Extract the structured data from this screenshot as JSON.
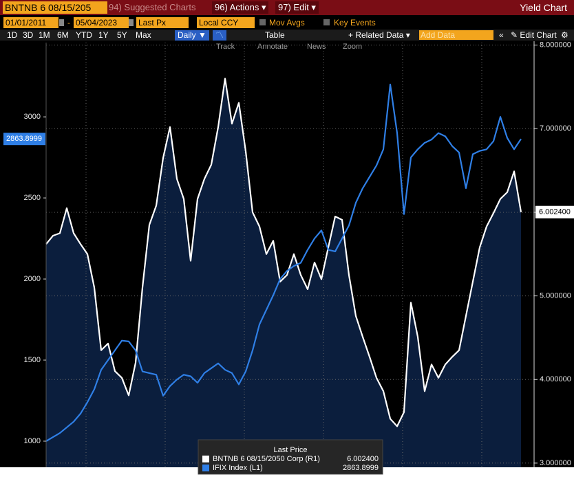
{
  "toolbar": {
    "security": "BNTNB 6 08/15/205",
    "suggested": "94) Suggested Charts",
    "actions": "96) Actions",
    "edit": "97) Edit",
    "chart_kind": "Yield Chart"
  },
  "controls": {
    "start_date": "01/01/2011",
    "dash": "-",
    "end_date": "05/04/2023",
    "field": "Last Px",
    "currency": "Local CCY",
    "mov_avgs": "Mov Avgs",
    "key_events": "Key Events"
  },
  "periods": [
    "1D",
    "3D",
    "1M",
    "6M",
    "YTD",
    "1Y",
    "5Y",
    "Max"
  ],
  "frequency": "Daily",
  "table": "Table",
  "related": "Related Data",
  "add_data": "Add Data",
  "edit_chart": "Edit Chart",
  "tools": [
    "Track",
    "Annotate",
    "News",
    "Zoom"
  ],
  "chart_data": {
    "type": "line",
    "legend_title": "Last Price",
    "categories": [
      null,
      null,
      null,
      null,
      null,
      null,
      null,
      null,
      null,
      null,
      null,
      null,
      null,
      null,
      null,
      null,
      null,
      null,
      null,
      null,
      null,
      null,
      null,
      null,
      null,
      null,
      null,
      null,
      null,
      null,
      null,
      null,
      null,
      null,
      null,
      null,
      null,
      null,
      null,
      null,
      null,
      null,
      null,
      null,
      null,
      null,
      null,
      null,
      null,
      null,
      null,
      null,
      null,
      null,
      null,
      null,
      null,
      null,
      null,
      null,
      null,
      null,
      null,
      null,
      null,
      null,
      null,
      null,
      null,
      null
    ],
    "ylim": [
      839,
      3458
    ],
    "yticks": [
      1000,
      1500,
      2000,
      2500,
      3000
    ],
    "y2lim": [
      2.95,
      8.03
    ],
    "y2ticks": [
      {
        "value": 3,
        "label": "3.000000"
      },
      {
        "value": 4,
        "label": "4.000000"
      },
      {
        "value": 5,
        "label": "5.000000"
      },
      {
        "value": 6,
        "label": "6.000000"
      },
      {
        "value": 7,
        "label": "7.000000"
      },
      {
        "value": 8,
        "label": "8.000000"
      }
    ],
    "grid": true,
    "series": [
      {
        "name": "BNTNB 6 08/15/2050 Corp (R1)",
        "color": "#ffffff",
        "area_fill": "#0b1e3d",
        "axis": "y2",
        "last_price": {
          "value": 6.0024,
          "label": "6.002400"
        },
        "values": [
          5.62,
          5.72,
          5.75,
          6.05,
          5.75,
          5.62,
          5.5,
          5.1,
          4.35,
          4.43,
          4.1,
          4.02,
          3.81,
          4.2,
          5.1,
          5.85,
          6.08,
          6.65,
          7.02,
          6.4,
          6.16,
          5.42,
          6.16,
          6.4,
          6.57,
          7.02,
          7.6,
          7.06,
          7.31,
          6.73,
          6.0,
          5.83,
          5.5,
          5.66,
          5.17,
          5.25,
          5.5,
          5.25,
          5.08,
          5.4,
          5.2,
          5.58,
          5.95,
          5.91,
          5.25,
          4.76,
          4.51,
          4.27,
          4.02,
          3.86,
          3.53,
          3.44,
          3.61,
          4.92,
          4.51,
          3.86,
          4.18,
          4.02,
          4.18,
          4.27,
          4.35,
          4.76,
          5.17,
          5.58,
          5.83,
          5.99,
          6.16,
          6.24,
          6.49,
          6.0024
        ]
      },
      {
        "name": "IFIX Index (L1)",
        "color": "#2f7fe6",
        "axis": "y",
        "last_price": 2863.8999,
        "values": [
          1000,
          1025,
          1050,
          1085,
          1120,
          1170,
          1240,
          1320,
          1440,
          1500,
          1560,
          1620,
          1615,
          1560,
          1430,
          1420,
          1410,
          1280,
          1340,
          1380,
          1410,
          1400,
          1360,
          1420,
          1450,
          1480,
          1440,
          1420,
          1350,
          1430,
          1560,
          1720,
          1810,
          1900,
          2000,
          2050,
          2080,
          2100,
          2180,
          2250,
          2300,
          2180,
          2170,
          2250,
          2330,
          2470,
          2560,
          2630,
          2700,
          2800,
          3200,
          2900,
          2400,
          2750,
          2800,
          2840,
          2860,
          2900,
          2880,
          2820,
          2780,
          2560,
          2770,
          2790,
          2800,
          2850,
          3000,
          2870,
          2800,
          2863.8999
        ]
      }
    ]
  }
}
